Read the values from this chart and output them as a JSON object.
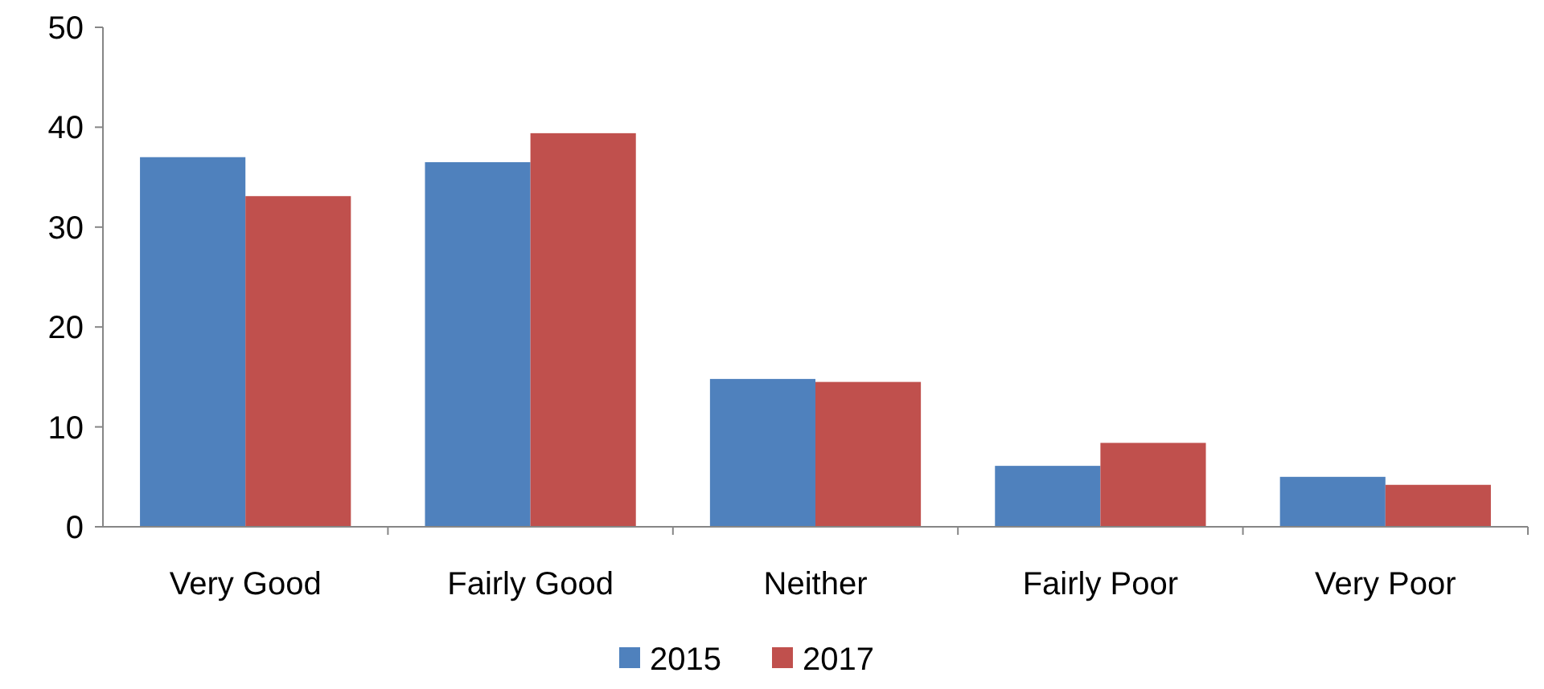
{
  "chart_data": {
    "type": "bar",
    "categories": [
      "Very Good",
      "Fairly Good",
      "Neither",
      "Fairly Poor",
      "Very Poor"
    ],
    "series": [
      {
        "name": "2015",
        "color": "#4f81bd",
        "values": [
          37,
          36.5,
          14.8,
          6.1,
          5
        ]
      },
      {
        "name": "2017",
        "color": "#c0504d",
        "values": [
          33.1,
          39.4,
          14.5,
          8.4,
          4.2
        ]
      }
    ],
    "ylim": [
      0,
      50
    ],
    "yticks": [
      0,
      10,
      20,
      30,
      40,
      50
    ],
    "grid": false,
    "legend": "bottom"
  }
}
